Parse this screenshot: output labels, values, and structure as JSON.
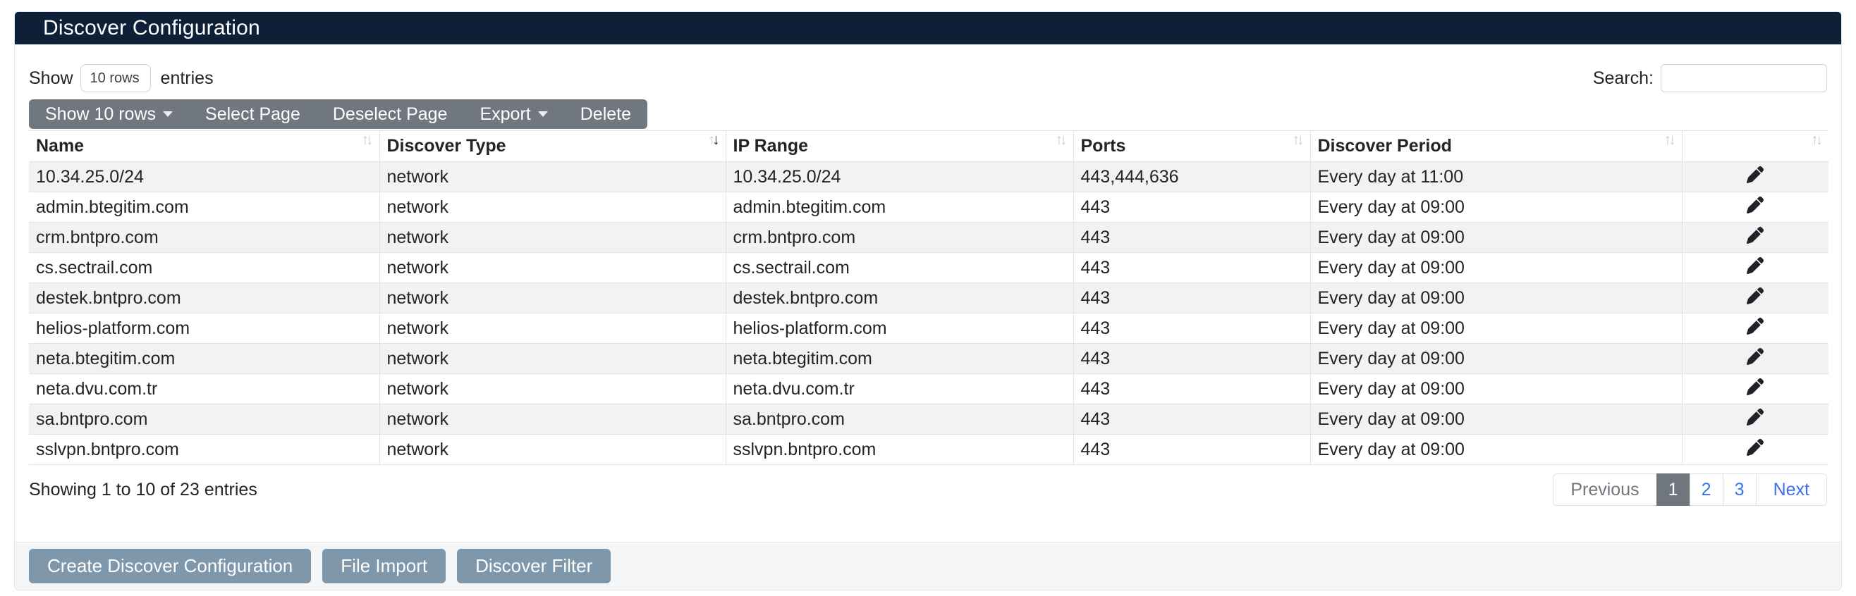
{
  "colors": {
    "header_bg": "#0e1f38",
    "toolbar_bg": "#71777e",
    "action_button_bg": "#7e97ab",
    "stripe": "#f2f2f2",
    "border": "#dee2e6",
    "link_blue": "#3d6ff2",
    "active_page_bg": "#6f767d",
    "text": "#212529"
  },
  "header": {
    "title": "Discover Configuration"
  },
  "controls": {
    "show_label": "Show",
    "page_size_value": "10 rows",
    "entries_label": "entries",
    "search_label": "Search:",
    "search_value": ""
  },
  "toolbar": {
    "buttons": [
      {
        "label": "Show 10 rows",
        "icon": "caret-down-icon"
      },
      {
        "label": "Select Page"
      },
      {
        "label": "Deselect Page"
      },
      {
        "label": "Export",
        "icon": "caret-down-icon"
      },
      {
        "label": "Delete"
      }
    ]
  },
  "table": {
    "columns": [
      {
        "label": "Name",
        "sort": "unsorted"
      },
      {
        "label": "Discover Type",
        "sort": "desc"
      },
      {
        "label": "IP Range",
        "sort": "unsorted"
      },
      {
        "label": "Ports",
        "sort": "unsorted"
      },
      {
        "label": "Discover Period",
        "sort": "unsorted"
      },
      {
        "label": "",
        "sort": "unsorted"
      }
    ],
    "row_action_icon": "pencil-icon",
    "rows": [
      [
        "10.34.25.0/24",
        "network",
        "10.34.25.0/24",
        "443,444,636",
        "Every day at 11:00"
      ],
      [
        "admin.btegitim.com",
        "network",
        "admin.btegitim.com",
        "443",
        "Every day at 09:00"
      ],
      [
        "crm.bntpro.com",
        "network",
        "crm.bntpro.com",
        "443",
        "Every day at 09:00"
      ],
      [
        "cs.sectrail.com",
        "network",
        "cs.sectrail.com",
        "443",
        "Every day at 09:00"
      ],
      [
        "destek.bntpro.com",
        "network",
        "destek.bntpro.com",
        "443",
        "Every day at 09:00"
      ],
      [
        "helios-platform.com",
        "network",
        "helios-platform.com",
        "443",
        "Every day at 09:00"
      ],
      [
        "neta.btegitim.com",
        "network",
        "neta.btegitim.com",
        "443",
        "Every day at 09:00"
      ],
      [
        "neta.dvu.com.tr",
        "network",
        "neta.dvu.com.tr",
        "443",
        "Every day at 09:00"
      ],
      [
        "sa.bntpro.com",
        "network",
        "sa.bntpro.com",
        "443",
        "Every day at 09:00"
      ],
      [
        "sslvpn.bntpro.com",
        "network",
        "sslvpn.bntpro.com",
        "443",
        "Every day at 09:00"
      ]
    ]
  },
  "summary": {
    "showing_text": "Showing 1 to 10 of 23 entries"
  },
  "pagination": {
    "previous_label": "Previous",
    "pages": [
      "1",
      "2",
      "3"
    ],
    "active_page": "1",
    "next_label": "Next"
  },
  "actions": {
    "buttons": [
      "Create Discover Configuration",
      "File Import",
      "Discover Filter"
    ]
  }
}
